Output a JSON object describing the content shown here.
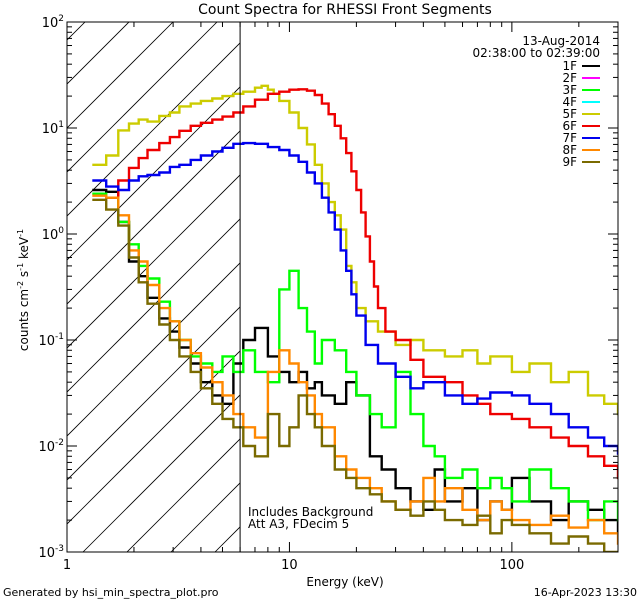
{
  "chart_data": {
    "type": "line",
    "title": "Count Spectra for RHESSI Front Segments",
    "xlabel": "Energy (keV)",
    "ylabel": "counts cm^-2 s^-1 keV^-1",
    "ylabel_parts": {
      "base": "counts cm",
      "e1": "-2",
      "mid": " s",
      "e2": "-1",
      "tail": " keV",
      "e3": "-1"
    },
    "xscale": "log",
    "yscale": "log",
    "xlim": [
      1,
      300
    ],
    "ylim": [
      0.001,
      100
    ],
    "x_ticks": [
      {
        "value": 1,
        "label": "1"
      },
      {
        "value": 10,
        "label": "10"
      },
      {
        "value": 100,
        "label": "100"
      }
    ],
    "y_ticks": [
      {
        "value": 0.001,
        "base": "10",
        "exp": "-3"
      },
      {
        "value": 0.01,
        "base": "10",
        "exp": "-2"
      },
      {
        "value": 0.1,
        "base": "10",
        "exp": "-1"
      },
      {
        "value": 1,
        "base": "10",
        "exp": "0"
      },
      {
        "value": 10,
        "base": "10",
        "exp": "1"
      },
      {
        "value": 100,
        "base": "10",
        "exp": "2"
      }
    ],
    "date": "13-Aug-2014",
    "time_range": "02:38:00 to 02:39:00",
    "attenuator_boundary_kev": 6,
    "annotations": [
      "Includes Background",
      "Att A3, FDecim 5"
    ],
    "footer_left": "Generated by hsi_min_spectra_plot.pro",
    "footer_right": "16-Apr-2023 13:30",
    "series": [
      {
        "name": "1F",
        "color": "#000000",
        "x": [
          1.3,
          1.5,
          1.7,
          1.9,
          2.1,
          2.3,
          2.6,
          2.9,
          3.2,
          3.6,
          4.0,
          4.5,
          5.0,
          5.6,
          6.2,
          7.0,
          8.0,
          9.0,
          10,
          11,
          12,
          13,
          14,
          16,
          18,
          20,
          23,
          26,
          30,
          35,
          40,
          45,
          50,
          60,
          70,
          80,
          90,
          100,
          120,
          150,
          180,
          220,
          260,
          300
        ],
        "y": [
          2.6,
          2.5,
          1.3,
          0.55,
          0.4,
          0.25,
          0.16,
          0.12,
          0.085,
          0.06,
          0.04,
          0.03,
          0.025,
          0.06,
          0.1,
          0.13,
          0.07,
          0.05,
          0.04,
          0.05,
          0.035,
          0.04,
          0.03,
          0.025,
          0.04,
          0.03,
          0.008,
          0.006,
          0.004,
          0.003,
          0.0025,
          0.006,
          0.003,
          0.004,
          0.002,
          0.003,
          0.0025,
          0.005,
          0.003,
          0.002,
          0.003,
          0.0025,
          0.002,
          0.0015
        ]
      },
      {
        "name": "2F",
        "color": "#ff00ff",
        "x": [],
        "y": []
      },
      {
        "name": "3F",
        "color": "#00ff00",
        "x": [
          1.3,
          1.5,
          1.7,
          1.9,
          2.1,
          2.3,
          2.6,
          2.9,
          3.2,
          3.6,
          4.0,
          4.5,
          5.0,
          5.6,
          6.2,
          7.0,
          8.0,
          9.0,
          10,
          11,
          12,
          13,
          14,
          16,
          18,
          20,
          23,
          26,
          30,
          35,
          40,
          45,
          50,
          60,
          70,
          80,
          90,
          100,
          120,
          150,
          180,
          220,
          260,
          300
        ],
        "y": [
          2.4,
          2.2,
          1.3,
          0.8,
          0.5,
          0.38,
          0.23,
          0.15,
          0.1,
          0.07,
          0.06,
          0.05,
          0.07,
          0.05,
          0.08,
          0.05,
          0.04,
          0.3,
          0.45,
          0.2,
          0.12,
          0.06,
          0.1,
          0.08,
          0.05,
          0.03,
          0.02,
          0.015,
          0.05,
          0.02,
          0.01,
          0.008,
          0.005,
          0.006,
          0.004,
          0.005,
          0.004,
          0.003,
          0.006,
          0.004,
          0.003,
          0.002,
          0.003,
          0.002
        ]
      },
      {
        "name": "4F",
        "color": "#00ffff",
        "x": [],
        "y": []
      },
      {
        "name": "5F",
        "color": "#cccc00",
        "x": [
          1.3,
          1.5,
          1.7,
          1.9,
          2.1,
          2.3,
          2.6,
          2.9,
          3.2,
          3.6,
          4.0,
          4.5,
          5.0,
          5.6,
          6.2,
          7.0,
          7.5,
          8.0,
          8.5,
          9.0,
          10,
          11,
          12,
          13,
          14,
          15,
          16,
          17,
          18,
          19,
          20,
          22,
          25,
          30,
          35,
          40,
          50,
          60,
          70,
          80,
          100,
          120,
          150,
          180,
          220,
          260,
          300
        ],
        "y": [
          4.5,
          5.5,
          9.5,
          11,
          12,
          11.5,
          13,
          14,
          16,
          17,
          18,
          19,
          20,
          21,
          22,
          24,
          25,
          23,
          21,
          18,
          14,
          10,
          7,
          4.5,
          3,
          2,
          1.5,
          1.1,
          0.5,
          0.35,
          0.2,
          0.15,
          0.12,
          0.09,
          0.1,
          0.08,
          0.07,
          0.08,
          0.06,
          0.07,
          0.05,
          0.06,
          0.04,
          0.05,
          0.03,
          0.025,
          0.02
        ]
      },
      {
        "name": "6F",
        "color": "#ee0000",
        "x": [
          1.5,
          1.7,
          1.9,
          2.1,
          2.3,
          2.6,
          2.9,
          3.2,
          3.6,
          4.0,
          4.5,
          5.0,
          5.6,
          6.2,
          7.0,
          8.0,
          9.0,
          10,
          11,
          12,
          13,
          14,
          15,
          16,
          17,
          18,
          19,
          20,
          21,
          22,
          23,
          24,
          25,
          27,
          30,
          35,
          40,
          50,
          60,
          70,
          80,
          100,
          120,
          150,
          180,
          220,
          260,
          300
        ],
        "y": [
          2.2,
          3.2,
          4.2,
          5.2,
          6.2,
          7.2,
          8.2,
          9.4,
          10.5,
          11.2,
          12,
          12.8,
          14,
          16,
          18.5,
          21,
          22,
          23,
          23.2,
          22.5,
          20.5,
          17,
          13.5,
          10.5,
          8,
          5.8,
          3.9,
          2.6,
          1.6,
          0.95,
          0.55,
          0.32,
          0.2,
          0.12,
          0.1,
          0.065,
          0.045,
          0.04,
          0.03,
          0.025,
          0.02,
          0.018,
          0.015,
          0.012,
          0.01,
          0.008,
          0.0065,
          0.005
        ]
      },
      {
        "name": "7F",
        "color": "#0000ee",
        "x": [
          1.3,
          1.5,
          1.7,
          1.9,
          2.1,
          2.3,
          2.6,
          2.9,
          3.2,
          3.6,
          4.0,
          4.5,
          5.0,
          5.6,
          6.2,
          7.0,
          8.0,
          9.0,
          10,
          11,
          12,
          13,
          14,
          15,
          16,
          17,
          18,
          19,
          20,
          22,
          25,
          30,
          35,
          40,
          50,
          60,
          70,
          80,
          100,
          120,
          150,
          180,
          220,
          260,
          300
        ],
        "y": [
          3.2,
          2.8,
          2.6,
          3.2,
          3.5,
          3.6,
          3.8,
          4.3,
          4.5,
          5,
          5.5,
          6,
          6.5,
          7.1,
          7.2,
          7.1,
          6.6,
          6.2,
          5.5,
          4.8,
          3.8,
          3,
          2.2,
          1.6,
          1.1,
          0.7,
          0.45,
          0.27,
          0.17,
          0.09,
          0.06,
          0.045,
          0.035,
          0.04,
          0.03,
          0.025,
          0.028,
          0.032,
          0.03,
          0.025,
          0.02,
          0.015,
          0.012,
          0.01,
          0.0085
        ]
      },
      {
        "name": "8F",
        "color": "#ff8800",
        "x": [
          1.3,
          1.5,
          1.7,
          1.9,
          2.1,
          2.3,
          2.6,
          2.9,
          3.2,
          3.6,
          4.0,
          4.5,
          5.0,
          5.6,
          6.2,
          7.0,
          8.0,
          9.0,
          10,
          11,
          12,
          13,
          14,
          16,
          18,
          20,
          23,
          26,
          30,
          35,
          40,
          45,
          50,
          60,
          70,
          80,
          90,
          100,
          120,
          150,
          180,
          220,
          260,
          300
        ],
        "y": [
          2.3,
          2.2,
          1.5,
          0.7,
          0.55,
          0.33,
          0.2,
          0.15,
          0.1,
          0.075,
          0.055,
          0.04,
          0.03,
          0.02,
          0.015,
          0.012,
          0.05,
          0.08,
          0.06,
          0.04,
          0.03,
          0.02,
          0.015,
          0.008,
          0.006,
          0.005,
          0.004,
          0.003,
          0.0025,
          0.003,
          0.005,
          0.003,
          0.004,
          0.0025,
          0.002,
          0.003,
          0.0025,
          0.002,
          0.0018,
          0.0022,
          0.0017,
          0.002,
          0.0015,
          0.0012
        ]
      },
      {
        "name": "9F",
        "color": "#7a6a00",
        "x": [
          1.3,
          1.5,
          1.7,
          1.9,
          2.1,
          2.3,
          2.6,
          2.9,
          3.2,
          3.6,
          4.0,
          4.5,
          5.0,
          5.6,
          6.2,
          7.0,
          8.0,
          9.0,
          10,
          11,
          12,
          13,
          14,
          16,
          18,
          20,
          23,
          26,
          30,
          35,
          40,
          45,
          50,
          60,
          70,
          80,
          90,
          100,
          120,
          150,
          180,
          220,
          260,
          300
        ],
        "y": [
          2.1,
          1.7,
          1.2,
          0.6,
          0.35,
          0.22,
          0.14,
          0.1,
          0.07,
          0.05,
          0.035,
          0.025,
          0.018,
          0.015,
          0.01,
          0.008,
          0.02,
          0.01,
          0.015,
          0.03,
          0.02,
          0.015,
          0.01,
          0.006,
          0.005,
          0.004,
          0.0035,
          0.003,
          0.0025,
          0.0022,
          0.003,
          0.0025,
          0.002,
          0.0018,
          0.0022,
          0.0015,
          0.002,
          0.0018,
          0.0015,
          0.0012,
          0.0014,
          0.0012,
          0.001,
          0.001
        ]
      }
    ]
  }
}
